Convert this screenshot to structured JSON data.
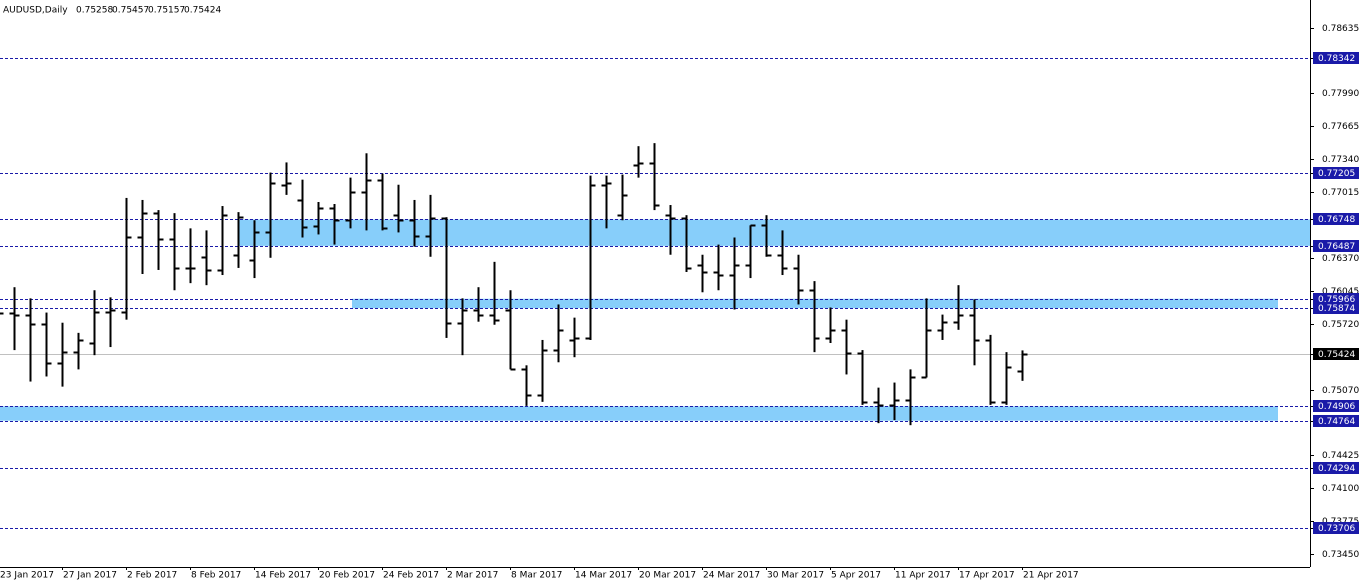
{
  "chart_data": {
    "type": "ohlc",
    "title": "AUDUSD,Daily",
    "categories": [
      "23 Jan 2017",
      null,
      null,
      null,
      "27 Jan 2017",
      null,
      null,
      null,
      "2 Feb 2017",
      null,
      null,
      null,
      "8 Feb 2017",
      null,
      null,
      null,
      "14 Feb 2017",
      null,
      null,
      null,
      "20 Feb 2017",
      null,
      null,
      null,
      "24 Feb 2017",
      null,
      null,
      null,
      "2 Mar 2017",
      null,
      null,
      null,
      "8 Mar 2017",
      null,
      null,
      null,
      "14 Mar 2017",
      null,
      null,
      null,
      "20 Mar 2017",
      null,
      null,
      null,
      "24 Mar 2017",
      null,
      null,
      null,
      "30 Mar 2017",
      null,
      null,
      null,
      "5 Apr 2017",
      null,
      null,
      null,
      "11 Apr 2017",
      null,
      null,
      null,
      "17 Apr 2017",
      null,
      null,
      null,
      "21 Apr 2017"
    ],
    "open": [
      0.7586,
      0.7583,
      0.7581,
      0.7572,
      0.7533,
      0.7544,
      0.7553,
      0.7584,
      0.7584,
      0.7657,
      0.7681,
      0.7656,
      0.7627,
      0.7638,
      0.7625,
      0.764,
      0.7635,
      0.7662,
      0.7709,
      0.7694,
      0.7668,
      0.7686,
      0.7674,
      0.7702,
      0.7714,
      0.7679,
      0.7674,
      0.7658,
      0.7676,
      0.7573,
      0.7586,
      0.7581,
      0.7586,
      0.7527,
      0.7502,
      0.7546,
      0.7556,
      0.7558,
      0.7709,
      0.7679,
      0.7728,
      0.773,
      0.7679,
      0.7676,
      0.763,
      0.7623,
      0.762,
      0.763,
      0.7669,
      0.764,
      0.7627,
      0.7605,
      0.7558,
      0.7566,
      0.7543,
      0.7495,
      0.7492,
      0.7497,
      0.7519,
      0.7566,
      0.7574,
      0.7581,
      0.7556,
      0.7495,
      0.75258
    ],
    "high": [
      0.76,
      0.7608,
      0.7597,
      0.7583,
      0.7573,
      0.7563,
      0.7605,
      0.7598,
      0.7696,
      0.7694,
      0.7684,
      0.7681,
      0.7666,
      0.7664,
      0.7688,
      0.7682,
      0.7674,
      0.7721,
      0.7731,
      0.7714,
      0.7692,
      0.769,
      0.7716,
      0.774,
      0.772,
      0.7709,
      0.7694,
      0.7699,
      0.7677,
      0.7597,
      0.7608,
      0.7633,
      0.7605,
      0.7531,
      0.7556,
      0.7591,
      0.7578,
      0.7718,
      0.7718,
      0.7719,
      0.7747,
      0.775,
      0.7689,
      0.7679,
      0.764,
      0.765,
      0.7657,
      0.7669,
      0.7679,
      0.7664,
      0.764,
      0.7614,
      0.7588,
      0.7576,
      0.7546,
      0.7509,
      0.7514,
      0.7527,
      0.7597,
      0.7581,
      0.761,
      0.7596,
      0.7561,
      0.7544,
      0.75457
    ],
    "low": [
      0.7576,
      0.7546,
      0.7515,
      0.752,
      0.751,
      0.7527,
      0.7541,
      0.7549,
      0.7576,
      0.7621,
      0.7625,
      0.7605,
      0.7612,
      0.761,
      0.762,
      0.7627,
      0.7617,
      0.7637,
      0.7699,
      0.7657,
      0.766,
      0.765,
      0.7666,
      0.7664,
      0.7664,
      0.7662,
      0.7648,
      0.7638,
      0.7558,
      0.7541,
      0.7574,
      0.7571,
      0.7527,
      0.7491,
      0.7495,
      0.7534,
      0.7539,
      0.7556,
      0.7666,
      0.7674,
      0.7716,
      0.7684,
      0.764,
      0.7623,
      0.7603,
      0.7605,
      0.7586,
      0.7617,
      0.7638,
      0.762,
      0.7591,
      0.7544,
      0.7553,
      0.7522,
      0.7492,
      0.7474,
      0.7477,
      0.7472,
      0.7519,
      0.7556,
      0.7566,
      0.7531,
      0.7492,
      0.7492,
      0.75157
    ],
    "close": [
      0.7583,
      0.7581,
      0.7572,
      0.7533,
      0.7544,
      0.7556,
      0.7584,
      0.7586,
      0.7657,
      0.7681,
      0.7656,
      0.7627,
      0.7627,
      0.7625,
      0.7679,
      0.7677,
      0.7662,
      0.7711,
      0.7711,
      0.7667,
      0.7686,
      0.7674,
      0.7702,
      0.7714,
      0.7666,
      0.7674,
      0.7658,
      0.7676,
      0.7573,
      0.7586,
      0.7581,
      0.7576,
      0.7527,
      0.7502,
      0.7546,
      0.7566,
      0.7558,
      0.7709,
      0.7711,
      0.7699,
      0.773,
      0.7689,
      0.7676,
      0.7627,
      0.7623,
      0.762,
      0.763,
      0.7669,
      0.764,
      0.7627,
      0.7605,
      0.7558,
      0.7566,
      0.7543,
      0.7495,
      0.7492,
      0.7497,
      0.7519,
      0.7566,
      0.7574,
      0.7581,
      0.7556,
      0.7495,
      0.7529,
      0.75424
    ],
    "color": "#000000",
    "levels": [
      0.78342,
      0.77205,
      0.76748,
      0.76487,
      0.75966,
      0.75874,
      0.74906,
      0.74764,
      0.74294,
      0.73706
    ],
    "level_color": "#1a1aa8",
    "zone_color": "#87cefa",
    "ylim": [
      0.73322,
      0.78911
    ],
    "yticks": [
      0.78635,
      {
        "value": 0.7799,
        "label": "0.77990"
      },
      0.77665,
      {
        "value": 0.7734,
        "label": "0.77340"
      },
      0.77015,
      {
        "value": 0.7637,
        "label": "0.76370"
      },
      0.76045,
      {
        "value": 0.7572,
        "label": "0.75720"
      },
      {
        "value": 0.7507,
        "label": "0.75070"
      },
      0.74425,
      {
        "value": 0.741,
        "label": "0.74100"
      },
      0.73775,
      {
        "value": 0.7345,
        "label": "0.73450"
      }
    ]
  }
}
